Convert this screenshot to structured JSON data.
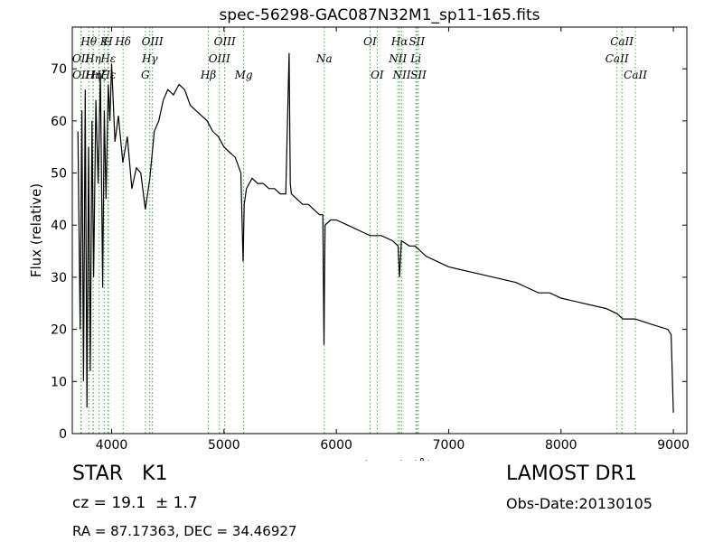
{
  "chart_data": {
    "type": "line",
    "title": "spec-56298-GAC087N32M1_sp11-165.fits",
    "xlabel": "Wavelength (Å)",
    "ylabel": "Flux (relative)",
    "xlim": [
      3650,
      9120
    ],
    "ylim": [
      0,
      78
    ],
    "xticks": [
      4000,
      5000,
      6000,
      7000,
      8000,
      9000
    ],
    "xtick_labels": [
      "4000",
      "5000",
      "6000",
      "7000",
      "8000",
      "9000"
    ],
    "yticks": [
      0,
      10,
      20,
      30,
      40,
      50,
      60,
      70
    ],
    "ytick_labels": [
      "0",
      "10",
      "20",
      "30",
      "40",
      "50",
      "60",
      "70"
    ],
    "grid": false,
    "line_color": "#000000",
    "marker_color": "#2ca02c",
    "series": [
      {
        "x": [
          3700,
          3720,
          3735,
          3750,
          3765,
          3780,
          3795,
          3810,
          3825,
          3840,
          3860,
          3880,
          3900,
          3920,
          3935,
          3950,
          3970,
          3985,
          4000,
          4030,
          4060,
          4100,
          4140,
          4180,
          4220,
          4260,
          4300,
          4340,
          4380,
          4420,
          4460,
          4500,
          4550,
          4600,
          4650,
          4700,
          4750,
          4800,
          4850,
          4900,
          4950,
          5000,
          5050,
          5100,
          5150,
          5170,
          5180,
          5200,
          5250,
          5300,
          5350,
          5400,
          5450,
          5500,
          5550,
          5580,
          5590,
          5600,
          5650,
          5700,
          5750,
          5800,
          5850,
          5880,
          5890,
          5895,
          5900,
          5950,
          6000,
          6100,
          6200,
          6300,
          6400,
          6500,
          6550,
          6563,
          6580,
          6650,
          6700,
          6800,
          6900,
          7000,
          7200,
          7400,
          7600,
          7700,
          7800,
          7900,
          8000,
          8200,
          8400,
          8500,
          8550,
          8660,
          8800,
          8950,
          8980,
          9000
        ],
        "y": [
          58,
          20,
          62,
          10,
          66,
          5,
          55,
          12,
          60,
          30,
          64,
          48,
          69,
          28,
          62,
          45,
          67,
          60,
          71,
          56,
          61,
          52,
          57,
          47,
          51,
          50,
          43,
          49,
          58,
          60,
          64,
          66,
          65,
          67,
          66,
          63,
          62,
          61,
          60,
          58,
          57,
          55,
          54,
          53,
          50,
          33,
          44,
          47,
          49,
          48,
          48,
          47,
          47,
          46,
          46,
          73,
          48,
          46,
          45,
          44,
          44,
          43,
          42,
          42,
          17,
          30,
          40,
          41,
          41,
          40,
          39,
          38,
          38,
          37,
          36,
          30,
          37,
          36,
          36,
          34,
          33,
          32,
          31,
          30,
          29,
          28,
          27,
          27,
          26,
          25,
          24,
          23,
          22,
          22,
          21,
          20,
          19,
          4
        ]
      }
    ],
    "line_markers": [
      {
        "label": "Hθ",
        "x": 3797,
        "row": 0
      },
      {
        "label": "K",
        "x": 3934,
        "row": 0
      },
      {
        "label": "H",
        "x": 3969,
        "row": 0
      },
      {
        "label": "Hδ",
        "x": 4102,
        "row": 0
      },
      {
        "label": "OIII",
        "x": 4363,
        "row": 0
      },
      {
        "label": "OIII",
        "x": 5007,
        "row": 0
      },
      {
        "label": "OI",
        "x": 6300,
        "row": 0
      },
      {
        "label": "Hα",
        "x": 6563,
        "row": 0
      },
      {
        "label": "SII",
        "x": 6717,
        "row": 0
      },
      {
        "label": "CaII",
        "x": 8542,
        "row": 0
      },
      {
        "label": "OII",
        "x": 3727,
        "row": 1
      },
      {
        "label": "Hη",
        "x": 3835,
        "row": 1
      },
      {
        "label": "Hε",
        "x": 3970,
        "row": 1
      },
      {
        "label": "Hγ",
        "x": 4340,
        "row": 1
      },
      {
        "label": "OIII",
        "x": 4959,
        "row": 1
      },
      {
        "label": "NII",
        "x": 6548,
        "row": 1
      },
      {
        "label": "Li",
        "x": 6708,
        "row": 1
      },
      {
        "label": "CaII",
        "x": 8498,
        "row": 1
      },
      {
        "label": "OII",
        "x": 3729,
        "row": 2
      },
      {
        "label": "Hη",
        "x": 3836,
        "row": 2
      },
      {
        "label": "Hζ",
        "x": 3889,
        "row": 2
      },
      {
        "label": "Hε",
        "x": 3971,
        "row": 2
      },
      {
        "label": "G",
        "x": 4300,
        "row": 2
      },
      {
        "label": "Hβ",
        "x": 4861,
        "row": 2
      },
      {
        "label": "Mg",
        "x": 5175,
        "row": 2
      },
      {
        "label": "Na",
        "x": 5893,
        "row": 1
      },
      {
        "label": "OI",
        "x": 6364,
        "row": 2
      },
      {
        "label": "NII",
        "x": 6583,
        "row": 2
      },
      {
        "label": "SII",
        "x": 6731,
        "row": 2
      },
      {
        "label": "CaII",
        "x": 8662,
        "row": 2
      }
    ]
  },
  "info": {
    "class_label": "STAR   K1",
    "survey": "LAMOST DR1",
    "cz_text": "cz = 19.1  ± 1.7",
    "obs_date": "Obs-Date:20130105",
    "radec": "RA = 87.17363, DEC = 34.46927"
  }
}
